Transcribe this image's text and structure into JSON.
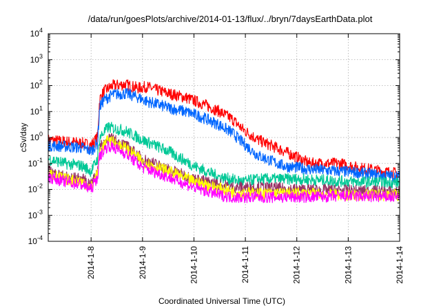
{
  "chart_data": {
    "type": "line",
    "title": "/data/run/goesPlots/archive/2014-01-13/flux/../bryn/7daysEarthData.plot",
    "xlabel": "Coordinated Universal Time (UTC)",
    "ylabel": "cSv/day",
    "y_scale": "log",
    "xlim": [
      "2014-01-07T04:00",
      "2014-01-14T00:00"
    ],
    "ylim": [
      0.0001,
      10000
    ],
    "grid": true,
    "legend": "none",
    "x_ticks": [
      "2014-1-8",
      "2014-1-9",
      "2014-1-10",
      "2014-1-11",
      "2014-1-12",
      "2014-1-13",
      "2014-1-14"
    ],
    "y_ticks": [
      {
        "value": 0.0001,
        "base": "10",
        "exp": "-4"
      },
      {
        "value": 0.001,
        "base": "10",
        "exp": "-3"
      },
      {
        "value": 0.01,
        "base": "10",
        "exp": "-2"
      },
      {
        "value": 0.1,
        "base": "10",
        "exp": "-1"
      },
      {
        "value": 1,
        "base": "10",
        "exp": "0"
      },
      {
        "value": 10,
        "base": "10",
        "exp": "1"
      },
      {
        "value": 100,
        "base": "10",
        "exp": "2"
      },
      {
        "value": 1000,
        "base": "10",
        "exp": "3"
      },
      {
        "value": 10000,
        "base": "10",
        "exp": "4"
      }
    ],
    "series": [
      {
        "color": "#ff0000",
        "points": [
          [
            "2014-01-07T04:00",
            0.8
          ],
          [
            "2014-01-07T12:00",
            0.7
          ],
          [
            "2014-01-07T20:00",
            0.6
          ],
          [
            "2014-01-08T00:00",
            0.5
          ],
          [
            "2014-01-08T03:00",
            1.0
          ],
          [
            "2014-01-08T04:00",
            30
          ],
          [
            "2014-01-08T06:00",
            60
          ],
          [
            "2014-01-08T10:00",
            100
          ],
          [
            "2014-01-08T16:00",
            110
          ],
          [
            "2014-01-08T22:00",
            80
          ],
          [
            "2014-01-09T02:00",
            90
          ],
          [
            "2014-01-09T06:00",
            70
          ],
          [
            "2014-01-09T12:00",
            50
          ],
          [
            "2014-01-09T20:00",
            35
          ],
          [
            "2014-01-10T04:00",
            20
          ],
          [
            "2014-01-10T12:00",
            10
          ],
          [
            "2014-01-10T18:00",
            5
          ],
          [
            "2014-01-10T23:00",
            2
          ],
          [
            "2014-01-11T06:00",
            0.8
          ],
          [
            "2014-01-11T18:00",
            0.3
          ],
          [
            "2014-01-12T06:00",
            0.1
          ],
          [
            "2014-01-12T20:00",
            0.1
          ],
          [
            "2014-01-13T04:00",
            0.07
          ],
          [
            "2014-01-13T16:00",
            0.05
          ],
          [
            "2014-01-14T00:00",
            0.04
          ]
        ]
      },
      {
        "color": "#0066ff",
        "points": [
          [
            "2014-01-07T04:00",
            0.5
          ],
          [
            "2014-01-07T12:00",
            0.45
          ],
          [
            "2014-01-07T20:00",
            0.4
          ],
          [
            "2014-01-08T00:00",
            0.3
          ],
          [
            "2014-01-08T03:00",
            0.6
          ],
          [
            "2014-01-08T04:00",
            15
          ],
          [
            "2014-01-08T06:00",
            28
          ],
          [
            "2014-01-08T10:00",
            45
          ],
          [
            "2014-01-08T16:00",
            50
          ],
          [
            "2014-01-08T22:00",
            35
          ],
          [
            "2014-01-09T02:00",
            25
          ],
          [
            "2014-01-09T06:00",
            20
          ],
          [
            "2014-01-09T12:00",
            14
          ],
          [
            "2014-01-09T20:00",
            10
          ],
          [
            "2014-01-10T04:00",
            6
          ],
          [
            "2014-01-10T12:00",
            3
          ],
          [
            "2014-01-10T18:00",
            1.5
          ],
          [
            "2014-01-10T23:00",
            0.6
          ],
          [
            "2014-01-11T06:00",
            0.2
          ],
          [
            "2014-01-11T18:00",
            0.08
          ],
          [
            "2014-01-12T06:00",
            0.06
          ],
          [
            "2014-01-12T20:00",
            0.05
          ],
          [
            "2014-01-13T04:00",
            0.045
          ],
          [
            "2014-01-13T16:00",
            0.035
          ],
          [
            "2014-01-14T00:00",
            0.03
          ]
        ]
      },
      {
        "color": "#00c896",
        "points": [
          [
            "2014-01-07T04:00",
            0.15
          ],
          [
            "2014-01-07T12:00",
            0.1
          ],
          [
            "2014-01-07T20:00",
            0.08
          ],
          [
            "2014-01-08T00:00",
            0.05
          ],
          [
            "2014-01-08T03:00",
            0.15
          ],
          [
            "2014-01-08T04:00",
            1.0
          ],
          [
            "2014-01-08T08:00",
            2.5
          ],
          [
            "2014-01-08T16:00",
            1.8
          ],
          [
            "2014-01-09T00:00",
            0.8
          ],
          [
            "2014-01-09T12:00",
            0.3
          ],
          [
            "2014-01-10T00:00",
            0.08
          ],
          [
            "2014-01-10T12:00",
            0.03
          ],
          [
            "2014-01-10T23:00",
            0.02
          ],
          [
            "2014-01-11T06:00",
            0.025
          ],
          [
            "2014-01-12T00:00",
            0.025
          ],
          [
            "2014-01-13T00:00",
            0.02
          ],
          [
            "2014-01-14T00:00",
            0.018
          ]
        ]
      },
      {
        "color": "#993366",
        "points": [
          [
            "2014-01-07T04:00",
            0.05
          ],
          [
            "2014-01-07T12:00",
            0.03
          ],
          [
            "2014-01-07T20:00",
            0.025
          ],
          [
            "2014-01-08T00:00",
            0.015
          ],
          [
            "2014-01-08T03:00",
            0.05
          ],
          [
            "2014-01-08T04:00",
            0.4
          ],
          [
            "2014-01-08T08:00",
            1.0
          ],
          [
            "2014-01-08T16:00",
            0.5
          ],
          [
            "2014-01-09T00:00",
            0.15
          ],
          [
            "2014-01-09T12:00",
            0.06
          ],
          [
            "2014-01-10T00:00",
            0.025
          ],
          [
            "2014-01-10T18:00",
            0.012
          ],
          [
            "2014-01-11T06:00",
            0.012
          ],
          [
            "2014-01-12T00:00",
            0.01
          ],
          [
            "2014-01-13T00:00",
            0.009
          ],
          [
            "2014-01-14T00:00",
            0.008
          ]
        ]
      },
      {
        "color": "#ffff00",
        "points": [
          [
            "2014-01-07T04:00",
            0.04
          ],
          [
            "2014-01-07T12:00",
            0.025
          ],
          [
            "2014-01-07T20:00",
            0.02
          ],
          [
            "2014-01-08T00:00",
            0.012
          ],
          [
            "2014-01-08T03:00",
            0.04
          ],
          [
            "2014-01-08T04:00",
            0.3
          ],
          [
            "2014-01-08T08:00",
            0.8
          ],
          [
            "2014-01-08T16:00",
            0.4
          ],
          [
            "2014-01-09T00:00",
            0.12
          ],
          [
            "2014-01-09T12:00",
            0.05
          ],
          [
            "2014-01-10T00:00",
            0.02
          ],
          [
            "2014-01-10T18:00",
            0.008
          ],
          [
            "2014-01-11T06:00",
            0.007
          ],
          [
            "2014-01-12T00:00",
            0.007
          ],
          [
            "2014-01-13T00:00",
            0.006
          ],
          [
            "2014-01-14T00:00",
            0.006
          ]
        ]
      },
      {
        "color": "#ff00ff",
        "points": [
          [
            "2014-01-07T04:00",
            0.03
          ],
          [
            "2014-01-07T12:00",
            0.02
          ],
          [
            "2014-01-07T20:00",
            0.015
          ],
          [
            "2014-01-08T00:00",
            0.01
          ],
          [
            "2014-01-08T03:00",
            0.03
          ],
          [
            "2014-01-08T04:00",
            0.2
          ],
          [
            "2014-01-08T08:00",
            0.5
          ],
          [
            "2014-01-08T16:00",
            0.25
          ],
          [
            "2014-01-09T00:00",
            0.07
          ],
          [
            "2014-01-09T12:00",
            0.03
          ],
          [
            "2014-01-10T00:00",
            0.012
          ],
          [
            "2014-01-10T12:00",
            0.006
          ],
          [
            "2014-01-10T18:00",
            0.005
          ],
          [
            "2014-01-11T06:00",
            0.005
          ],
          [
            "2014-01-12T00:00",
            0.005
          ],
          [
            "2014-01-13T00:00",
            0.0055
          ],
          [
            "2014-01-14T00:00",
            0.005
          ]
        ]
      }
    ]
  }
}
